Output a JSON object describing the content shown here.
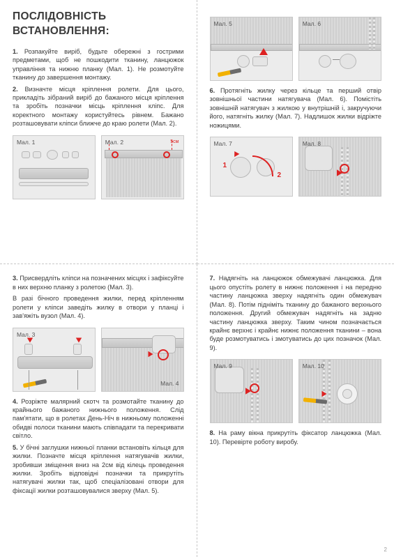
{
  "title": "ПОСЛІДОВНІСТЬ ВСТАНОВЛЕННЯ:",
  "page_number": "2",
  "labels": {
    "fig1": "Мал. 1",
    "fig2": "Мал. 2",
    "fig3": "Мал. 3",
    "fig4": "Мал. 4",
    "fig5": "Мал. 5",
    "fig6": "Мал. 6",
    "fig7": "Мал. 7",
    "fig8": "Мал. 8",
    "fig9": "Мал. 9",
    "fig10": "Мал. 10"
  },
  "dim5cm": "5см",
  "red1": "1",
  "red2": "2",
  "steps": {
    "s1": "1. Розпакуйте виріб, будьте обережні з гострими предметами, щоб не пошкодити тканину, ланцюжок управління та нижню планку (Мал. 1). Не розмотуйте тканину до завершення монтажу.",
    "s2": "2. Визначте місця кріплення ролети. Для цього, прикладіть зібраний виріб до бажаного місця кріплення та зробіть позначки місць кріплення кліпс. Для коректного монтажу користуйтесь рівнем. Бажано розташовувати кліпси ближче до краю ролети (Мал. 2).",
    "s3a": "3. Присвердліть кліпси на позначених місцях і зафіксуйте в них верхню планку з ролетою (Мал. 3).",
    "s3b": "В разі бічного проведення жилки, перед кріпленням ролети у кліпси заведіть жилку в отвори у планці і зав'яжіть вузол (Мал. 4).",
    "s4": "4. Розріжте малярний скотч та розмотайте тканину до крайнього бажаного нижнього положення. Слід пам'ятати, що в ролетах День-Ніч в нижньому положенні обидві полоси тканини мають співпадати та перекривати світло.",
    "s5": "5. У бічні заглушки нижньої планки встановіть кільця для жилки. Позначте місця кріплення натягувачів жилки, зробивши зміщення вниз на 2см від кілець проведення жилки. Зробіть відповідні позначки та прикрутіть натягувачі жилки так, щоб спеціалізовані отвори для фіксації жилки розташовувалися зверху (Мал. 5).",
    "s6": "6. Протягніть жилку через кільце та перший отвір зовнішньої частини натягувача (Мал. 6). Помістіть зовнішній натягувач з жилкою у внутрішній і, закручуючи його, натягніть жилку (Мал. 7). Надлишок жилки відріжте ножицями.",
    "s7": "7. Надягніть на ланцюжок обмежувачі ланцюжка. Для цього опустіть ролету в нижнє положення і на передню частину ланцюжка зверху надягніть один обмежувач (Мал. 8). Потім підніміть тканину до бажаного верхнього положення. Другий обмежувач надягніть на задню частину ланцюжка зверху. Таким чином позначається крайнє верхнє і крайнє нижнє положення тканини – вона буде розмотуватись і змотуватись до цих позначок (Мал. 9).",
    "s8": "8. На раму вікна прикрутіть фіксатор ланцюжка (Мал. 10). Перевірте роботу виробу."
  }
}
